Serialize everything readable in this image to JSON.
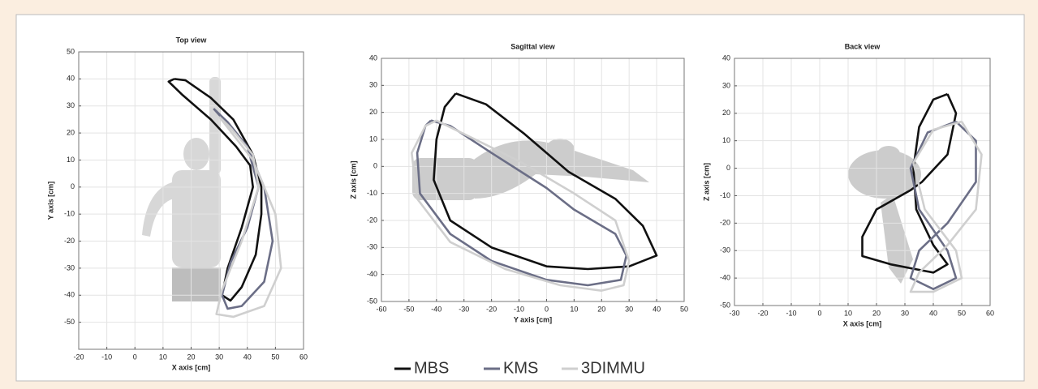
{
  "chart_data": [
    {
      "type": "line",
      "title": "Top view",
      "x_label": "X axis [cm]",
      "y_label": "Y axis [cm]",
      "xlim": [
        -20,
        60
      ],
      "xticks": [
        -20,
        -10,
        0,
        10,
        20,
        30,
        40,
        50,
        60
      ],
      "ylim": [
        -60,
        50
      ],
      "yticks": [
        -50,
        -40,
        -30,
        -20,
        -10,
        0,
        10,
        20,
        30,
        40,
        50
      ],
      "grid": true,
      "series": [
        {
          "name": "MBS",
          "color": "#111111",
          "x": [
            14,
            18,
            27,
            35,
            42,
            45,
            45,
            43,
            38,
            34,
            31,
            33,
            38,
            42,
            41,
            36,
            27,
            17,
            12,
            14
          ],
          "values": [
            40,
            39.5,
            33,
            25,
            12,
            0,
            -10,
            -25,
            -37,
            -42,
            -40,
            -30,
            -15,
            0,
            8,
            15,
            25,
            34,
            39,
            40
          ]
        },
        {
          "name": "KMS",
          "color": "#6b6e86",
          "x": [
            28,
            40,
            46,
            49,
            46,
            38,
            33,
            31,
            34,
            40,
            44,
            40,
            33,
            28
          ],
          "values": [
            29,
            15,
            0,
            -20,
            -35,
            -44,
            -45,
            -40,
            -28,
            -15,
            0,
            15,
            24,
            29
          ]
        },
        {
          "name": "3DIMMU",
          "color": "#cfcfcf",
          "x": [
            30,
            42,
            50,
            52,
            46,
            35,
            29,
            31,
            38,
            44,
            42,
            34,
            30
          ],
          "values": [
            26,
            10,
            -10,
            -30,
            -44,
            -48,
            -47,
            -38,
            -20,
            0,
            12,
            22,
            26
          ]
        }
      ]
    },
    {
      "type": "line",
      "title": "Sagittal view",
      "x_label": "Y axis [cm]",
      "y_label": "Z axis [cm]",
      "xlim": [
        -60,
        50
      ],
      "xticks": [
        -60,
        -50,
        -40,
        -30,
        -20,
        -10,
        0,
        10,
        20,
        30,
        40,
        50
      ],
      "ylim": [
        -50,
        40
      ],
      "yticks": [
        -50,
        -40,
        -30,
        -20,
        -10,
        0,
        10,
        20,
        30,
        40
      ],
      "grid": true,
      "series": [
        {
          "name": "MBS",
          "color": "#111111",
          "x": [
            -33,
            -22,
            -8,
            8,
            25,
            35,
            40,
            30,
            15,
            0,
            -20,
            -35,
            -41,
            -40,
            -37,
            -33
          ],
          "values": [
            27,
            23,
            12,
            -2,
            -12,
            -22,
            -33,
            -37,
            -38,
            -37,
            -30,
            -20,
            -5,
            10,
            22,
            27
          ]
        },
        {
          "name": "KMS",
          "color": "#6b6e86",
          "x": [
            -42,
            -35,
            -20,
            0,
            10,
            25,
            29,
            27,
            15,
            0,
            -20,
            -35,
            -46,
            -47,
            -44,
            -42
          ],
          "values": [
            17,
            15,
            5,
            -8,
            -16,
            -25,
            -33,
            -42,
            -44,
            -42,
            -35,
            -25,
            -10,
            5,
            15,
            17
          ]
        },
        {
          "name": "3DIMMU",
          "color": "#cfcfcf",
          "x": [
            -40,
            -30,
            -10,
            10,
            25,
            30,
            28,
            20,
            5,
            -15,
            -35,
            -47,
            -49,
            -44,
            -40
          ],
          "values": [
            17,
            12,
            2,
            -10,
            -20,
            -35,
            -44,
            -46,
            -44,
            -38,
            -28,
            -12,
            5,
            15,
            17
          ]
        }
      ]
    },
    {
      "type": "line",
      "title": "Back view",
      "x_label": "X axis [cm]",
      "y_label": "Z axis [cm]",
      "xlim": [
        -30,
        60
      ],
      "xticks": [
        -30,
        -20,
        -10,
        0,
        10,
        20,
        30,
        40,
        50,
        60
      ],
      "ylim": [
        -50,
        40
      ],
      "yticks": [
        -50,
        -40,
        -30,
        -20,
        -10,
        0,
        10,
        20,
        30,
        40
      ],
      "grid": true,
      "series": [
        {
          "name": "MBS",
          "color": "#111111",
          "x": [
            45,
            48,
            45,
            36,
            32,
            20,
            15,
            15,
            25,
            40,
            45,
            40,
            34,
            33,
            35,
            40,
            45
          ],
          "values": [
            27,
            20,
            5,
            -5,
            -8,
            -15,
            -25,
            -32,
            -35,
            -38,
            -35,
            -28,
            -15,
            0,
            15,
            25,
            27
          ]
        },
        {
          "name": "KMS",
          "color": "#6b6e86",
          "x": [
            48,
            55,
            55,
            45,
            35,
            32,
            40,
            48,
            45,
            35,
            32,
            38,
            48
          ],
          "values": [
            17,
            10,
            -5,
            -20,
            -30,
            -40,
            -44,
            -40,
            -30,
            -15,
            0,
            13,
            17
          ]
        },
        {
          "name": "3DIMMU",
          "color": "#cfcfcf",
          "x": [
            50,
            57,
            55,
            45,
            35,
            32,
            40,
            50,
            48,
            37,
            33,
            40,
            50
          ],
          "values": [
            17,
            5,
            -15,
            -28,
            -38,
            -45,
            -45,
            -40,
            -30,
            -15,
            2,
            14,
            17
          ]
        }
      ]
    }
  ]
}
